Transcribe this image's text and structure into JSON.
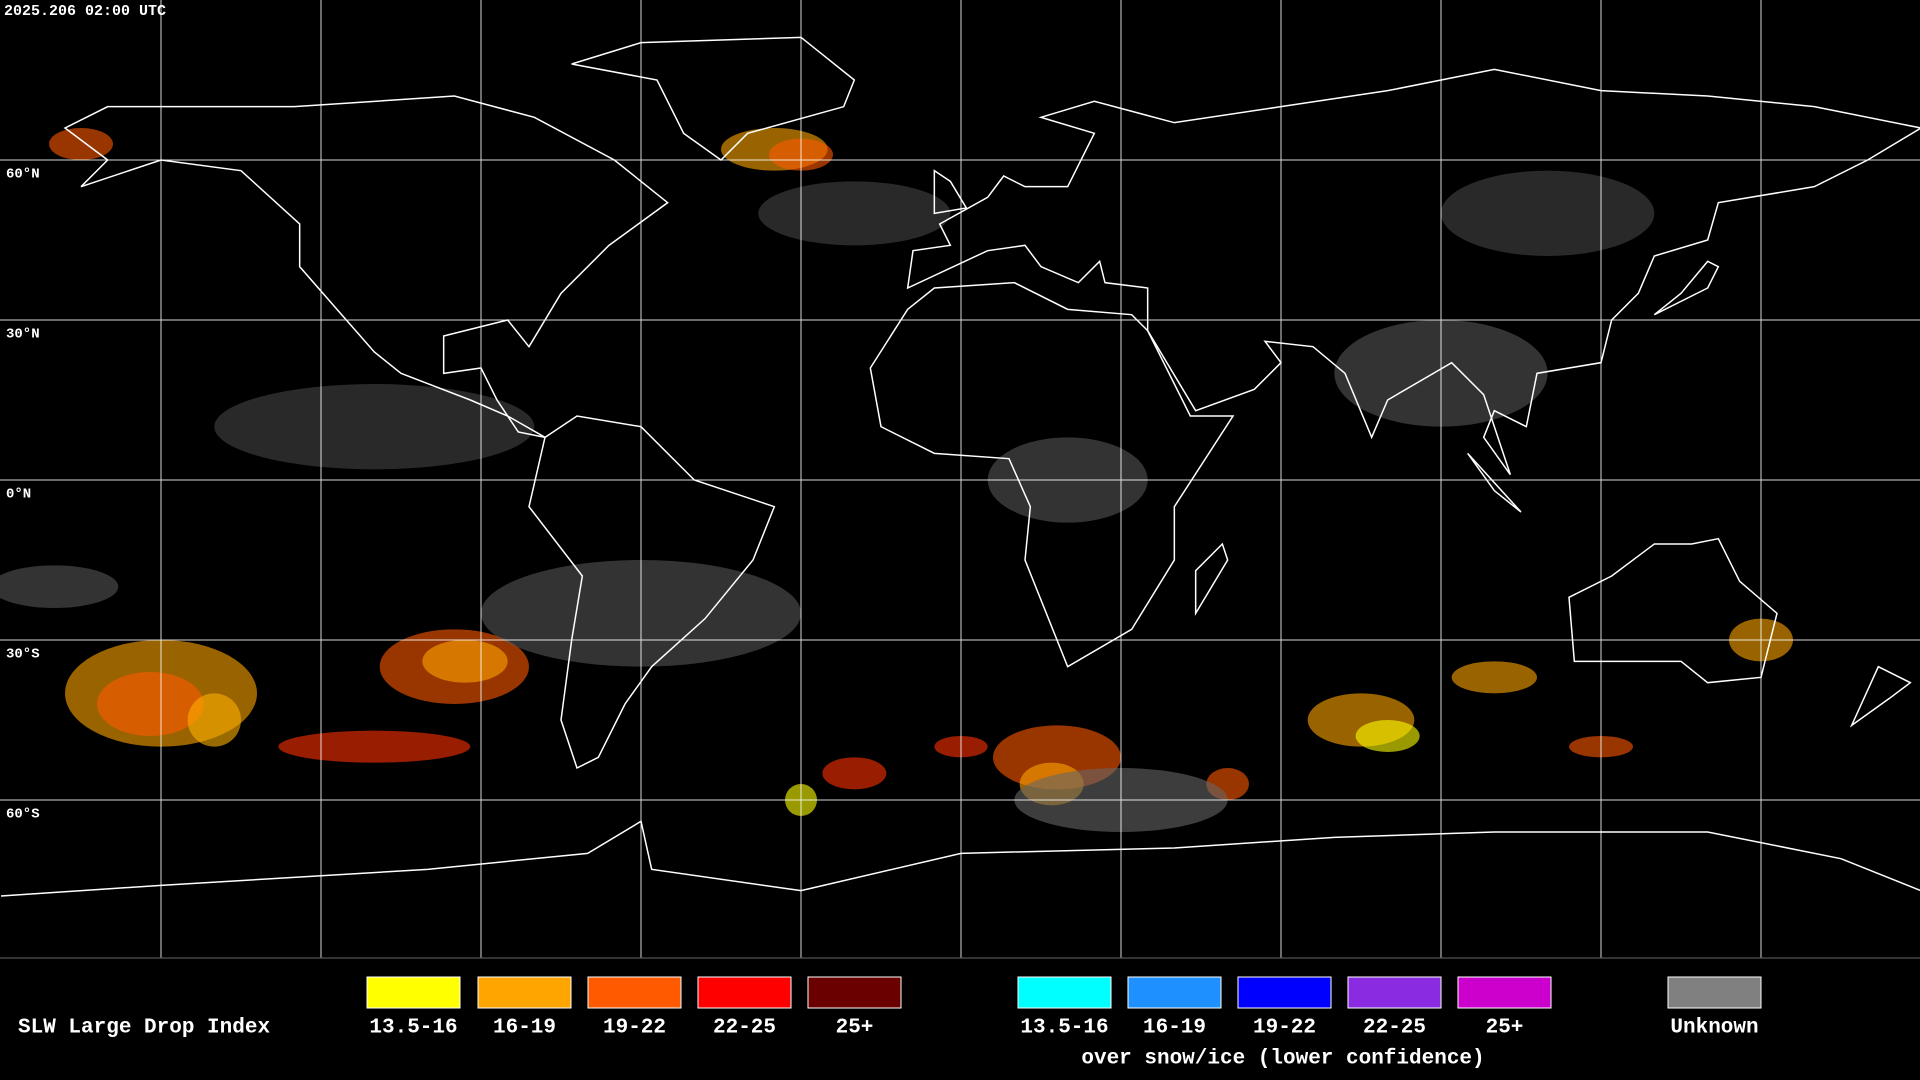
{
  "header": {
    "timestamp": "2025.206 02:00 UTC"
  },
  "map": {
    "latitude_labels": [
      "60°N",
      "30°N",
      "0°N",
      "30°S",
      "60°S"
    ]
  },
  "legend": {
    "title": "SLW Large Drop Index",
    "items": [
      {
        "label": "13.5-16",
        "color": "#ffff00"
      },
      {
        "label": "16-19",
        "color": "#ffa500"
      },
      {
        "label": "19-22",
        "color": "#ff5a00"
      },
      {
        "label": "22-25",
        "color": "#ff0000"
      },
      {
        "label": "25+",
        "color": "#6b0000"
      }
    ],
    "snow_ice_items": [
      {
        "label": "13.5-16",
        "color": "#00ffff"
      },
      {
        "label": "16-19",
        "color": "#1e90ff"
      },
      {
        "label": "19-22",
        "color": "#0000ff"
      },
      {
        "label": "22-25",
        "color": "#8a2be2"
      },
      {
        "label": "25+",
        "color": "#cc00cc"
      }
    ],
    "snow_ice_caption": "over snow/ice (lower confidence)",
    "unknown": {
      "label": "Unknown",
      "color": "#808080"
    }
  }
}
